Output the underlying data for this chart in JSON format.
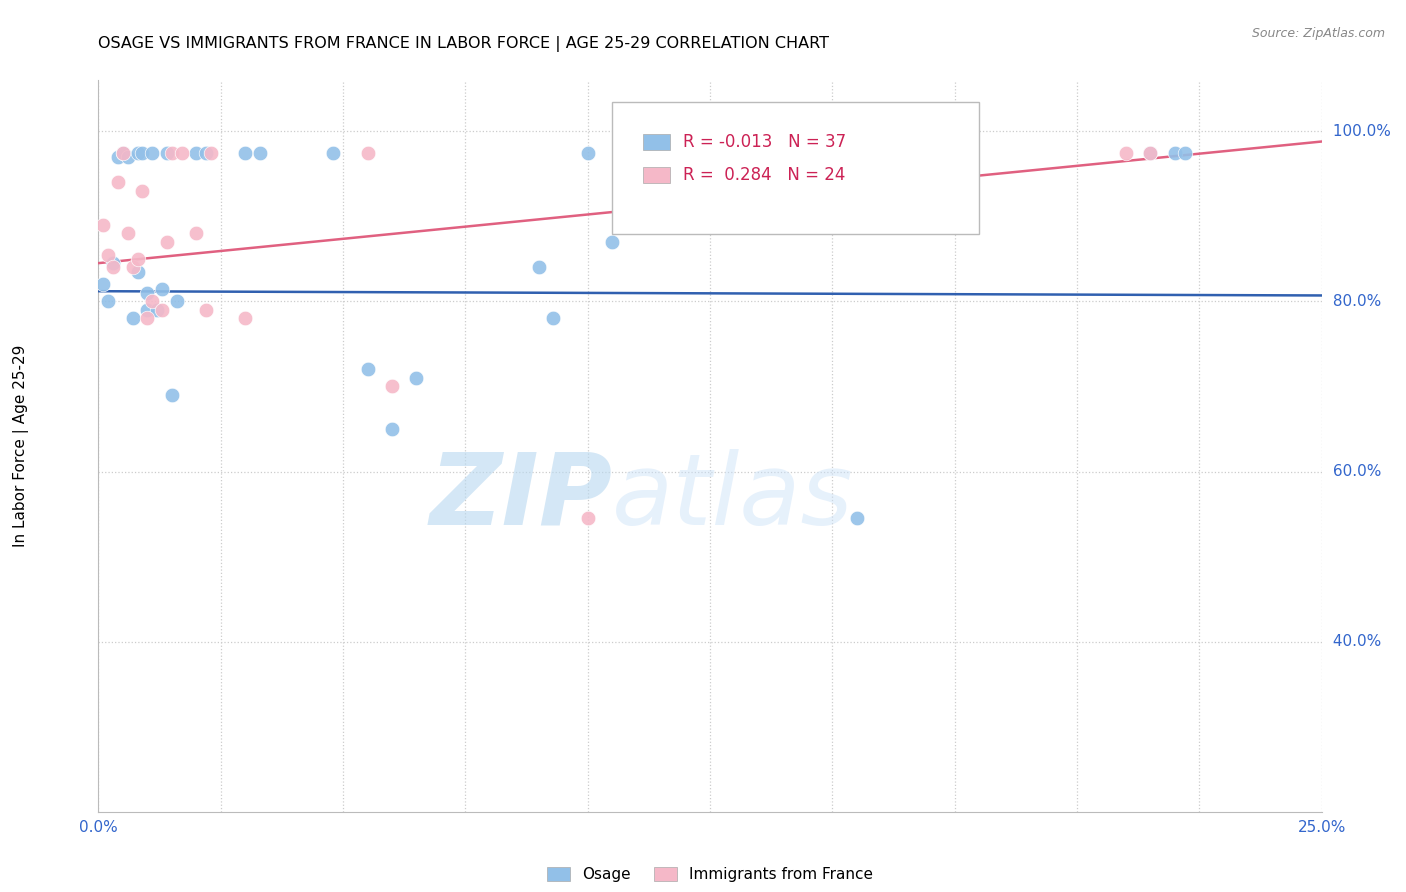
{
  "title": "OSAGE VS IMMIGRANTS FROM FRANCE IN LABOR FORCE | AGE 25-29 CORRELATION CHART",
  "source": "Source: ZipAtlas.com",
  "ylabel": "In Labor Force | Age 25-29",
  "xlim": [
    0.0,
    0.25
  ],
  "ylim": [
    0.2,
    1.06
  ],
  "ytick_vals": [
    0.4,
    0.6,
    0.8,
    1.0
  ],
  "ytick_labels": [
    "40.0%",
    "60.0%",
    "80.0%",
    "100.0%"
  ],
  "xtick_vals": [
    0.0,
    0.025,
    0.05,
    0.075,
    0.1,
    0.125,
    0.15,
    0.175,
    0.2,
    0.225,
    0.25
  ],
  "xtick_labels": [
    "0.0%",
    "",
    "",
    "",
    "",
    "",
    "",
    "",
    "",
    "",
    "25.0%"
  ],
  "osage_R": -0.013,
  "osage_N": 37,
  "france_R": 0.284,
  "france_N": 24,
  "osage_color": "#92c0e8",
  "france_color": "#f5b8c8",
  "osage_line_color": "#3060b0",
  "france_line_color": "#e06080",
  "legend_label_osage": "Osage",
  "legend_label_france": "Immigrants from France",
  "watermark_zip": "ZIP",
  "watermark_atlas": "atlas",
  "osage_x": [
    0.001,
    0.002,
    0.003,
    0.004,
    0.005,
    0.006,
    0.007,
    0.008,
    0.008,
    0.009,
    0.01,
    0.01,
    0.011,
    0.012,
    0.013,
    0.014,
    0.015,
    0.016,
    0.02,
    0.022,
    0.03,
    0.033,
    0.048,
    0.055,
    0.06,
    0.065,
    0.09,
    0.093,
    0.1,
    0.105,
    0.108,
    0.14,
    0.145,
    0.155,
    0.215,
    0.22,
    0.222
  ],
  "osage_y": [
    0.82,
    0.8,
    0.845,
    0.97,
    0.975,
    0.97,
    0.78,
    0.975,
    0.835,
    0.975,
    0.79,
    0.81,
    0.975,
    0.79,
    0.815,
    0.975,
    0.69,
    0.8,
    0.975,
    0.975,
    0.975,
    0.975,
    0.975,
    0.72,
    0.65,
    0.71,
    0.84,
    0.78,
    0.975,
    0.87,
    0.975,
    0.975,
    0.975,
    0.545,
    0.975,
    0.975,
    0.975
  ],
  "france_x": [
    0.001,
    0.002,
    0.003,
    0.004,
    0.005,
    0.006,
    0.007,
    0.008,
    0.009,
    0.01,
    0.011,
    0.013,
    0.014,
    0.015,
    0.017,
    0.02,
    0.022,
    0.023,
    0.03,
    0.055,
    0.06,
    0.1,
    0.21,
    0.215
  ],
  "france_y": [
    0.89,
    0.855,
    0.84,
    0.94,
    0.975,
    0.88,
    0.84,
    0.85,
    0.93,
    0.78,
    0.8,
    0.79,
    0.87,
    0.975,
    0.975,
    0.88,
    0.79,
    0.975,
    0.78,
    0.975,
    0.7,
    0.545,
    0.975,
    0.975
  ],
  "osage_line_x": [
    0.0,
    0.25
  ],
  "osage_line_y": [
    0.812,
    0.807
  ],
  "france_line_x": [
    0.0,
    0.25
  ],
  "france_line_y": [
    0.845,
    0.988
  ]
}
